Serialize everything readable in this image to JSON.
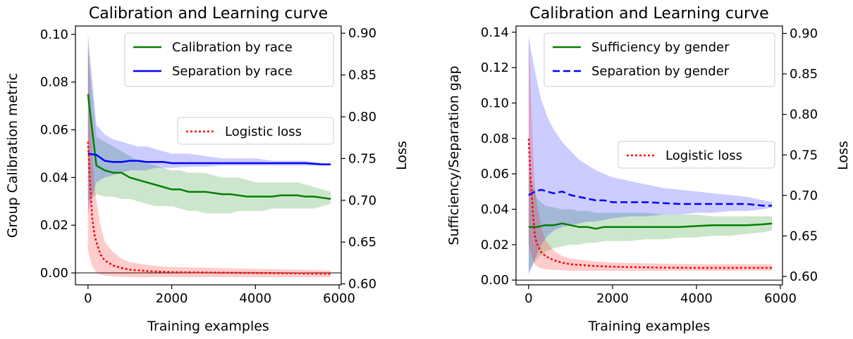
{
  "chart_data": [
    {
      "type": "line",
      "title": "Calibration and Learning curve",
      "xlabel": "Training examples",
      "ylabel": "Group Calibration metric",
      "y2label": "Loss",
      "xlim": [
        -300,
        6050
      ],
      "ylim": [
        -0.005,
        0.1035
      ],
      "y2lim": [
        0.5988,
        0.9086
      ],
      "xticks": [
        "0",
        "2000",
        "4000",
        "6000"
      ],
      "yticks": [
        "0.00",
        "0.02",
        "0.04",
        "0.06",
        "0.08",
        "0.10"
      ],
      "y2ticks": [
        "0.60",
        "0.65",
        "0.70",
        "0.75",
        "0.80",
        "0.85",
        "0.90"
      ],
      "legend_top": {
        "placement": "top-right",
        "entries": [
          "Calibration by race",
          "Separation by race"
        ]
      },
      "legend_loss": {
        "placement": "right",
        "entries": [
          "Logistic loss"
        ]
      },
      "series": [
        {
          "name": "Calibration by race",
          "axis": "left",
          "color": "#008000",
          "style": "solid",
          "x": [
            0,
            200,
            400,
            600,
            800,
            1000,
            1200,
            1400,
            1600,
            1800,
            2000,
            2200,
            2400,
            2600,
            2800,
            3000,
            3200,
            3400,
            3600,
            3800,
            4000,
            4200,
            4400,
            4600,
            4800,
            5000,
            5200,
            5400,
            5600,
            5800
          ],
          "y": [
            0.075,
            0.045,
            0.043,
            0.042,
            0.042,
            0.04,
            0.039,
            0.038,
            0.037,
            0.036,
            0.035,
            0.035,
            0.034,
            0.034,
            0.034,
            0.0335,
            0.033,
            0.033,
            0.0325,
            0.032,
            0.032,
            0.032,
            0.032,
            0.0325,
            0.0325,
            0.0325,
            0.032,
            0.032,
            0.0315,
            0.031
          ],
          "lower": [
            0.03,
            0.033,
            0.032,
            0.032,
            0.031,
            0.031,
            0.03,
            0.029,
            0.028,
            0.028,
            0.028,
            0.027,
            0.026,
            0.026,
            0.025,
            0.025,
            0.025,
            0.025,
            0.026,
            0.026,
            0.026,
            0.026,
            0.027,
            0.027,
            0.027,
            0.027,
            0.027,
            0.027,
            0.028,
            0.029
          ],
          "upper": [
            0.095,
            0.057,
            0.055,
            0.053,
            0.051,
            0.049,
            0.047,
            0.046,
            0.045,
            0.044,
            0.043,
            0.043,
            0.042,
            0.042,
            0.042,
            0.041,
            0.04,
            0.04,
            0.04,
            0.039,
            0.038,
            0.038,
            0.038,
            0.038,
            0.038,
            0.038,
            0.037,
            0.036,
            0.035,
            0.034
          ]
        },
        {
          "name": "Separation by race",
          "axis": "left",
          "color": "#0000ff",
          "style": "solid",
          "x": [
            0,
            200,
            400,
            600,
            800,
            1000,
            1200,
            1400,
            1600,
            1800,
            2000,
            2400,
            2800,
            3200,
            3600,
            4000,
            4400,
            4800,
            5200,
            5600,
            5800
          ],
          "y": [
            0.05,
            0.0495,
            0.047,
            0.0465,
            0.0465,
            0.047,
            0.047,
            0.0465,
            0.0465,
            0.0465,
            0.046,
            0.046,
            0.046,
            0.046,
            0.046,
            0.046,
            0.046,
            0.046,
            0.046,
            0.0455,
            0.0455
          ],
          "lower": [
            0.025,
            0.038,
            0.04,
            0.041,
            0.042,
            0.043,
            0.043,
            0.043,
            0.044,
            0.044,
            0.044,
            0.0445,
            0.0445,
            0.045,
            0.045,
            0.045,
            0.045,
            0.045,
            0.045,
            0.045,
            0.045
          ],
          "upper": [
            0.1,
            0.062,
            0.058,
            0.056,
            0.055,
            0.054,
            0.053,
            0.053,
            0.052,
            0.051,
            0.05,
            0.05,
            0.049,
            0.048,
            0.048,
            0.048,
            0.047,
            0.047,
            0.047,
            0.046,
            0.046
          ]
        },
        {
          "name": "Logistic loss",
          "axis": "right",
          "color": "#ff0000",
          "style": "dotted",
          "x": [
            0,
            50,
            100,
            150,
            200,
            300,
            400,
            600,
            800,
            1000,
            1500,
            2000,
            3000,
            4000,
            5000,
            5800
          ],
          "y": [
            0.77,
            0.72,
            0.68,
            0.66,
            0.65,
            0.635,
            0.628,
            0.622,
            0.619,
            0.617,
            0.615,
            0.614,
            0.6135,
            0.613,
            0.6125,
            0.612
          ],
          "lower": [
            0.64,
            0.63,
            0.622,
            0.617,
            0.614,
            0.611,
            0.61,
            0.609,
            0.6085,
            0.608,
            0.608,
            0.608,
            0.608,
            0.608,
            0.608,
            0.608
          ],
          "upper": [
            0.9,
            0.83,
            0.76,
            0.72,
            0.7,
            0.67,
            0.65,
            0.638,
            0.63,
            0.626,
            0.622,
            0.62,
            0.619,
            0.618,
            0.617,
            0.616
          ]
        }
      ]
    },
    {
      "type": "line",
      "title": "Calibration and Learning curve",
      "xlabel": "Training examples",
      "ylabel": "Sufficiency/Separation gap",
      "y2label": "Loss",
      "xlim": [
        -300,
        6050
      ],
      "ylim": [
        -0.0027,
        0.1435
      ],
      "y2lim": [
        0.5896,
        0.9091
      ],
      "xticks": [
        "0",
        "2000",
        "4000",
        "6000"
      ],
      "yticks": [
        "0.00",
        "0.02",
        "0.04",
        "0.06",
        "0.08",
        "0.10",
        "0.12",
        "0.14"
      ],
      "y2ticks": [
        "0.60",
        "0.65",
        "0.70",
        "0.75",
        "0.80",
        "0.85",
        "0.90"
      ],
      "legend_top": {
        "placement": "top-right",
        "entries": [
          "Sufficiency by gender",
          "Separation by gender"
        ]
      },
      "legend_loss": {
        "placement": "right",
        "entries": [
          "Logistic loss"
        ]
      },
      "series": [
        {
          "name": "Sufficiency by gender",
          "axis": "left",
          "color": "#008000",
          "style": "solid",
          "x": [
            0,
            200,
            400,
            600,
            800,
            1000,
            1200,
            1400,
            1600,
            1800,
            2000,
            2400,
            2800,
            3200,
            3600,
            4000,
            4400,
            4800,
            5200,
            5600,
            5800
          ],
          "y": [
            0.03,
            0.03,
            0.031,
            0.031,
            0.032,
            0.031,
            0.03,
            0.03,
            0.029,
            0.03,
            0.03,
            0.03,
            0.03,
            0.03,
            0.03,
            0.0305,
            0.031,
            0.031,
            0.031,
            0.0315,
            0.032
          ],
          "lower": [
            0.005,
            0.012,
            0.016,
            0.018,
            0.019,
            0.02,
            0.02,
            0.021,
            0.021,
            0.022,
            0.022,
            0.022,
            0.023,
            0.023,
            0.024,
            0.024,
            0.025,
            0.025,
            0.026,
            0.027,
            0.028
          ],
          "upper": [
            0.06,
            0.046,
            0.042,
            0.041,
            0.04,
            0.04,
            0.039,
            0.039,
            0.038,
            0.038,
            0.038,
            0.038,
            0.038,
            0.037,
            0.037,
            0.037,
            0.036,
            0.036,
            0.036,
            0.036,
            0.036
          ]
        },
        {
          "name": "Separation by gender",
          "axis": "left",
          "color": "#0000ff",
          "style": "dashed",
          "x": [
            0,
            150,
            300,
            450,
            600,
            800,
            1000,
            1200,
            1400,
            1600,
            1800,
            2000,
            2400,
            2800,
            3200,
            3600,
            4000,
            4400,
            4800,
            5200,
            5600,
            5800
          ],
          "y": [
            0.048,
            0.05,
            0.051,
            0.05,
            0.049,
            0.05,
            0.048,
            0.047,
            0.046,
            0.045,
            0.045,
            0.044,
            0.044,
            0.044,
            0.0435,
            0.043,
            0.043,
            0.043,
            0.043,
            0.043,
            0.042,
            0.042
          ],
          "lower": [
            0.003,
            0.012,
            0.02,
            0.025,
            0.028,
            0.03,
            0.031,
            0.032,
            0.033,
            0.033,
            0.034,
            0.035,
            0.036,
            0.036,
            0.037,
            0.037,
            0.038,
            0.038,
            0.039,
            0.039,
            0.04,
            0.041
          ],
          "upper": [
            0.137,
            0.118,
            0.102,
            0.092,
            0.085,
            0.078,
            0.073,
            0.068,
            0.065,
            0.062,
            0.06,
            0.058,
            0.056,
            0.054,
            0.052,
            0.051,
            0.05,
            0.049,
            0.048,
            0.047,
            0.045,
            0.044
          ]
        },
        {
          "name": "Logistic loss",
          "axis": "right",
          "color": "#ff0000",
          "style": "dotted",
          "x": [
            0,
            50,
            100,
            150,
            200,
            300,
            400,
            600,
            800,
            1000,
            1500,
            2000,
            3000,
            4000,
            5000,
            5800
          ],
          "y": [
            0.77,
            0.72,
            0.68,
            0.65,
            0.64,
            0.63,
            0.625,
            0.62,
            0.617,
            0.615,
            0.613,
            0.612,
            0.611,
            0.6105,
            0.6105,
            0.6105
          ],
          "lower": [
            0.64,
            0.63,
            0.62,
            0.615,
            0.612,
            0.61,
            0.609,
            0.608,
            0.6075,
            0.607,
            0.607,
            0.607,
            0.607,
            0.607,
            0.607,
            0.607
          ],
          "upper": [
            0.9,
            0.83,
            0.76,
            0.71,
            0.69,
            0.66,
            0.645,
            0.632,
            0.625,
            0.622,
            0.619,
            0.617,
            0.616,
            0.615,
            0.615,
            0.615
          ]
        }
      ]
    }
  ]
}
